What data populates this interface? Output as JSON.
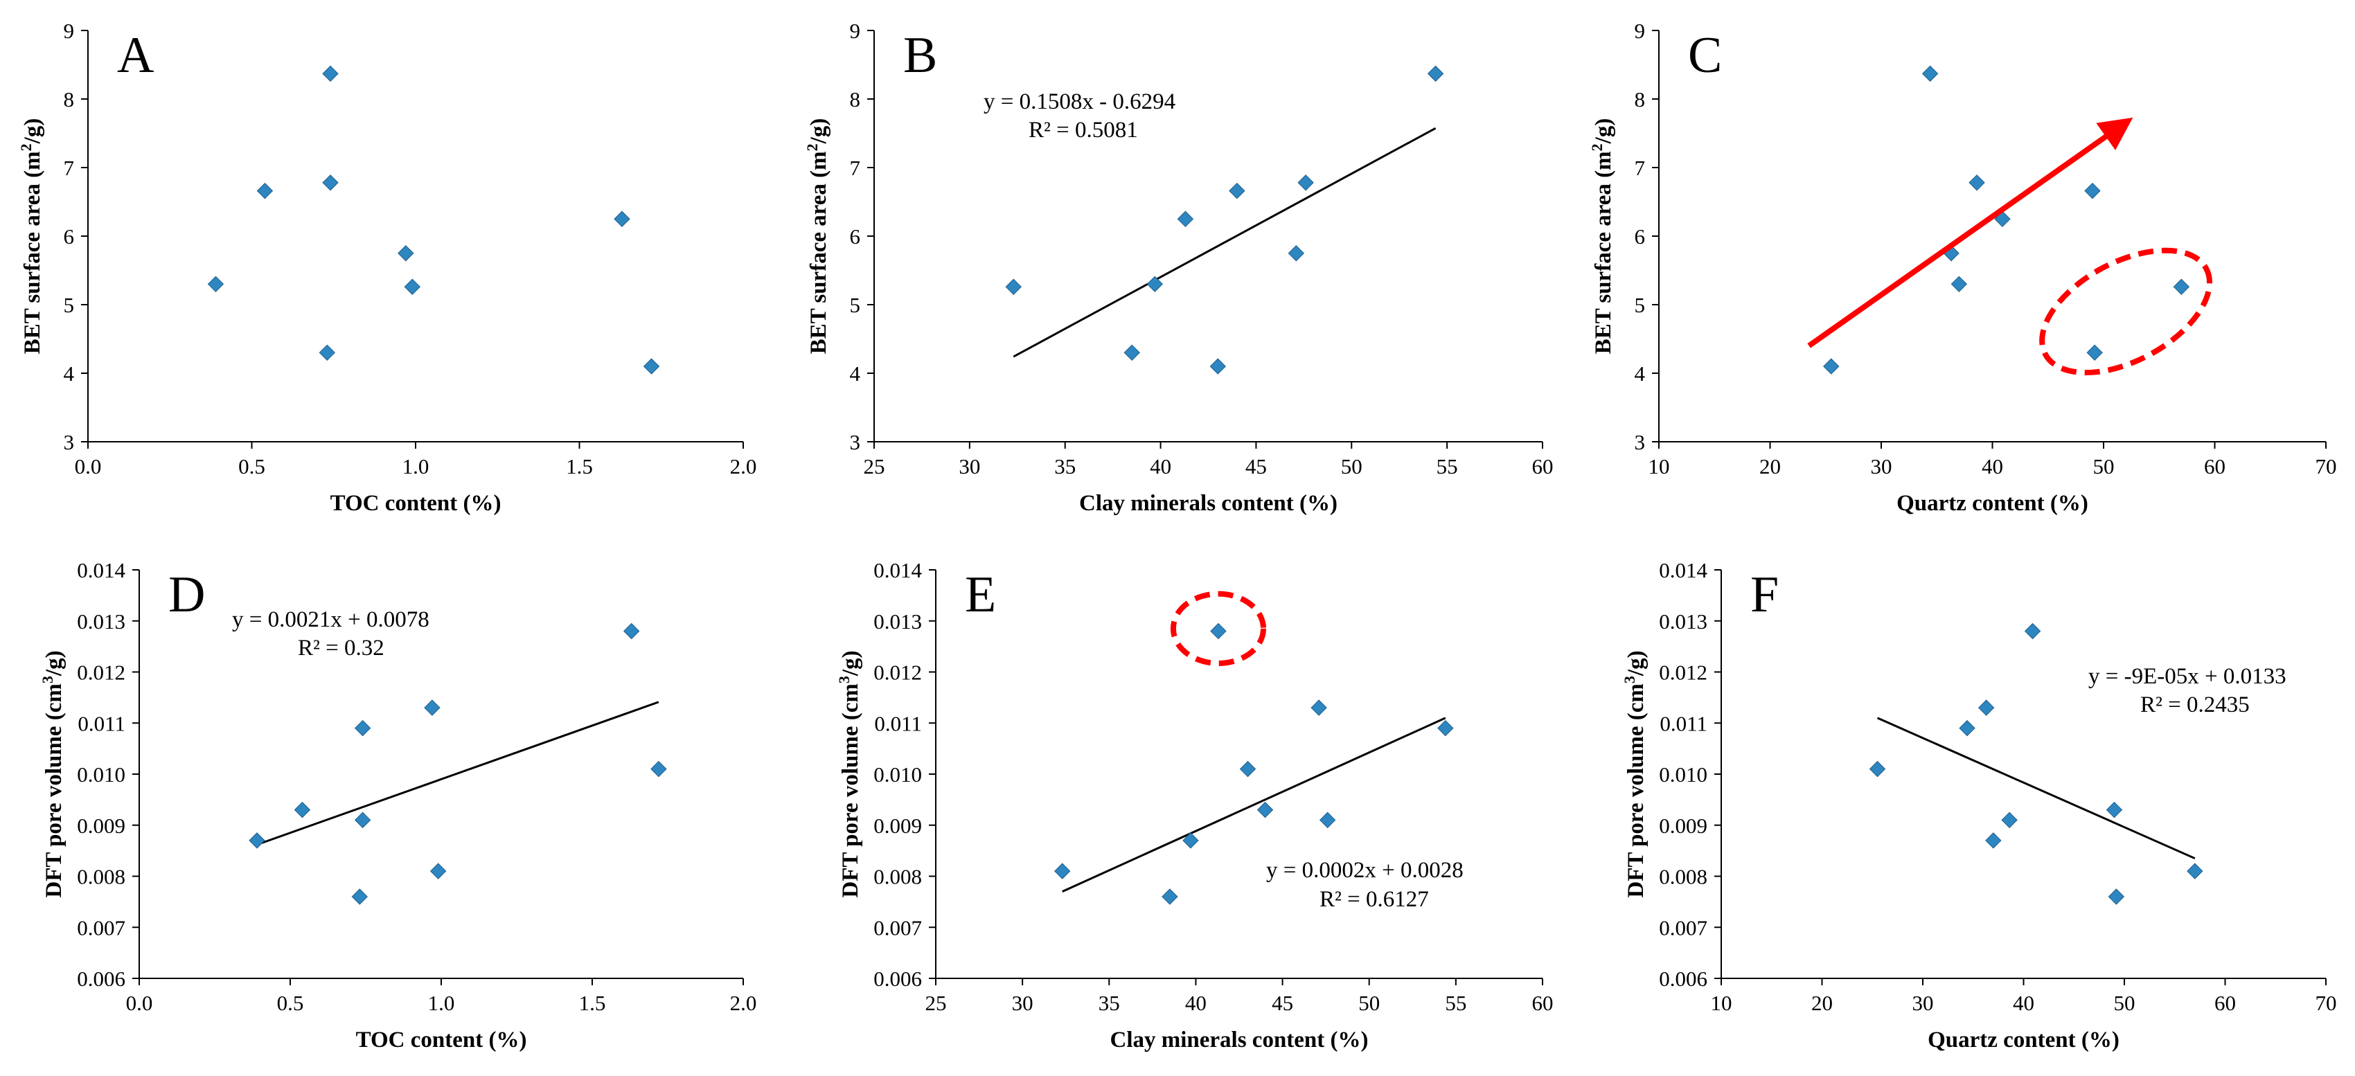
{
  "marker_color": "#2E86C1",
  "highlight_color": "#FF0000",
  "chart_data": [
    {
      "id": "A",
      "type": "scatter",
      "letter": "A",
      "xlabel": "TOC content (%)",
      "ylabel_parts": [
        "BET surface area (m",
        "2",
        "/g)"
      ],
      "xlim": [
        0.0,
        2.0
      ],
      "xticks": [
        "0.0",
        "0.5",
        "1.0",
        "1.5",
        "2.0"
      ],
      "ylim": [
        3,
        9
      ],
      "yticks": [
        "3",
        "4",
        "5",
        "6",
        "7",
        "8",
        "9"
      ],
      "points": [
        {
          "x": 0.39,
          "y": 5.3
        },
        {
          "x": 0.54,
          "y": 6.66
        },
        {
          "x": 0.73,
          "y": 4.3
        },
        {
          "x": 0.74,
          "y": 8.37
        },
        {
          "x": 0.74,
          "y": 6.78
        },
        {
          "x": 0.97,
          "y": 5.75
        },
        {
          "x": 0.99,
          "y": 5.26
        },
        {
          "x": 1.63,
          "y": 6.25
        },
        {
          "x": 1.72,
          "y": 4.1
        }
      ]
    },
    {
      "id": "B",
      "type": "scatter",
      "letter": "B",
      "xlabel": "Clay minerals content (%)",
      "ylabel_parts": [
        "BET surface area (m",
        "2",
        "/g)"
      ],
      "xlim": [
        25,
        60
      ],
      "xticks": [
        "25",
        "30",
        "35",
        "40",
        "45",
        "50",
        "55",
        "60"
      ],
      "ylim": [
        3,
        9
      ],
      "yticks": [
        "3",
        "4",
        "5",
        "6",
        "7",
        "8",
        "9"
      ],
      "points": [
        {
          "x": 32.3,
          "y": 5.26
        },
        {
          "x": 38.5,
          "y": 4.3
        },
        {
          "x": 39.7,
          "y": 5.3
        },
        {
          "x": 41.3,
          "y": 6.25
        },
        {
          "x": 43.0,
          "y": 4.1
        },
        {
          "x": 44.0,
          "y": 6.66
        },
        {
          "x": 47.1,
          "y": 5.75
        },
        {
          "x": 47.6,
          "y": 6.78
        },
        {
          "x": 54.4,
          "y": 8.37
        }
      ],
      "trendline": {
        "slope": 0.1508,
        "intercept": -0.6294,
        "x_range": [
          32.3,
          54.4
        ]
      },
      "equation": [
        "y = 0.1508x - 0.6294",
        "R² = 0.5081"
      ]
    },
    {
      "id": "C",
      "type": "scatter",
      "letter": "C",
      "xlabel": "Quartz content (%)",
      "ylabel_parts": [
        "BET surface area (m",
        "2",
        "/g)"
      ],
      "xlim": [
        10,
        70
      ],
      "xticks": [
        "10",
        "20",
        "30",
        "40",
        "50",
        "60",
        "70"
      ],
      "ylim": [
        3,
        9
      ],
      "yticks": [
        "3",
        "4",
        "5",
        "6",
        "7",
        "8",
        "9"
      ],
      "points": [
        {
          "x": 25.5,
          "y": 4.1
        },
        {
          "x": 34.4,
          "y": 8.37
        },
        {
          "x": 36.3,
          "y": 5.75
        },
        {
          "x": 37.0,
          "y": 5.3
        },
        {
          "x": 38.6,
          "y": 6.78
        },
        {
          "x": 40.9,
          "y": 6.25
        },
        {
          "x": 49.0,
          "y": 6.66
        },
        {
          "x": 49.2,
          "y": 4.3
        },
        {
          "x": 57.0,
          "y": 5.26
        }
      ],
      "arrow": {
        "from": [
          23.5,
          4.4
        ],
        "to": [
          51.5,
          7.6
        ]
      },
      "ellipse": {
        "cx": 52.0,
        "cy": 4.9,
        "rx": 8.2,
        "ry": 0.72,
        "angle": -28
      }
    },
    {
      "id": "D",
      "type": "scatter",
      "letter": "D",
      "xlabel": "TOC content (%)",
      "ylabel_parts": [
        "DFT pore volume (cm",
        "3",
        "/g)"
      ],
      "xlim": [
        0.0,
        2.0
      ],
      "xticks": [
        "0.0",
        "0.5",
        "1.0",
        "1.5",
        "2.0"
      ],
      "ylim": [
        0.006,
        0.014
      ],
      "yticks": [
        "0.006",
        "0.007",
        "0.008",
        "0.009",
        "0.010",
        "0.011",
        "0.012",
        "0.013",
        "0.014"
      ],
      "points": [
        {
          "x": 0.39,
          "y": 0.0087
        },
        {
          "x": 0.54,
          "y": 0.0093
        },
        {
          "x": 0.73,
          "y": 0.0076
        },
        {
          "x": 0.74,
          "y": 0.0109
        },
        {
          "x": 0.74,
          "y": 0.0091
        },
        {
          "x": 0.97,
          "y": 0.0113
        },
        {
          "x": 0.99,
          "y": 0.0081
        },
        {
          "x": 1.63,
          "y": 0.0128
        },
        {
          "x": 1.72,
          "y": 0.0101
        }
      ],
      "trendline": {
        "slope": 0.0021,
        "intercept": 0.0078,
        "x_range": [
          0.39,
          1.72
        ]
      },
      "equation": [
        "y = 0.0021x + 0.0078",
        "R² = 0.32"
      ]
    },
    {
      "id": "E",
      "type": "scatter",
      "letter": "E",
      "xlabel": "Clay minerals content (%)",
      "ylabel_parts": [
        "DFT pore volume (cm",
        "3",
        "/g)"
      ],
      "xlim": [
        25,
        60
      ],
      "xticks": [
        "25",
        "30",
        "35",
        "40",
        "45",
        "50",
        "55",
        "60"
      ],
      "ylim": [
        0.006,
        0.014
      ],
      "yticks": [
        "0.006",
        "0.007",
        "0.008",
        "0.009",
        "0.010",
        "0.011",
        "0.012",
        "0.013",
        "0.014"
      ],
      "points": [
        {
          "x": 32.3,
          "y": 0.0081
        },
        {
          "x": 38.5,
          "y": 0.0076
        },
        {
          "x": 39.7,
          "y": 0.0087
        },
        {
          "x": 41.3,
          "y": 0.0128
        },
        {
          "x": 43.0,
          "y": 0.0101
        },
        {
          "x": 44.0,
          "y": 0.0093
        },
        {
          "x": 47.1,
          "y": 0.0113
        },
        {
          "x": 47.6,
          "y": 0.0091
        },
        {
          "x": 54.4,
          "y": 0.0109
        }
      ],
      "trendline": {
        "slope": 0.0002,
        "intercept": 0.0028,
        "x_range": [
          32.3,
          54.4
        ],
        "y_range": [
          0.0077,
          0.0111
        ]
      },
      "equation": [
        "y = 0.0002x + 0.0028",
        "R² = 0.6127"
      ],
      "circle": {
        "cx": 41.3,
        "cy": 0.01285,
        "rx": 2.6,
        "ry": 0.00068
      }
    },
    {
      "id": "F",
      "type": "scatter",
      "letter": "F",
      "xlabel": "Quartz content (%)",
      "ylabel_parts": [
        "DFT pore volume (cm",
        "3",
        "/g)"
      ],
      "xlim": [
        10,
        70
      ],
      "xticks": [
        "10",
        "20",
        "30",
        "40",
        "50",
        "60",
        "70"
      ],
      "ylim": [
        0.006,
        0.014
      ],
      "yticks": [
        "0.006",
        "0.007",
        "0.008",
        "0.009",
        "0.010",
        "0.011",
        "0.012",
        "0.013",
        "0.014"
      ],
      "points": [
        {
          "x": 25.5,
          "y": 0.0101
        },
        {
          "x": 34.4,
          "y": 0.0109
        },
        {
          "x": 36.3,
          "y": 0.0113
        },
        {
          "x": 37.0,
          "y": 0.0087
        },
        {
          "x": 38.6,
          "y": 0.0091
        },
        {
          "x": 40.9,
          "y": 0.0128
        },
        {
          "x": 49.0,
          "y": 0.0093
        },
        {
          "x": 49.2,
          "y": 0.0076
        },
        {
          "x": 57.0,
          "y": 0.0081
        }
      ],
      "trendline": {
        "slope": -9e-05,
        "intercept": 0.0133,
        "x_range": [
          25.5,
          57.0
        ],
        "y_range": [
          0.0111,
          0.00835
        ]
      },
      "equation": [
        "y = -9E-05x + 0.0133",
        "R² = 0.2435"
      ]
    }
  ]
}
